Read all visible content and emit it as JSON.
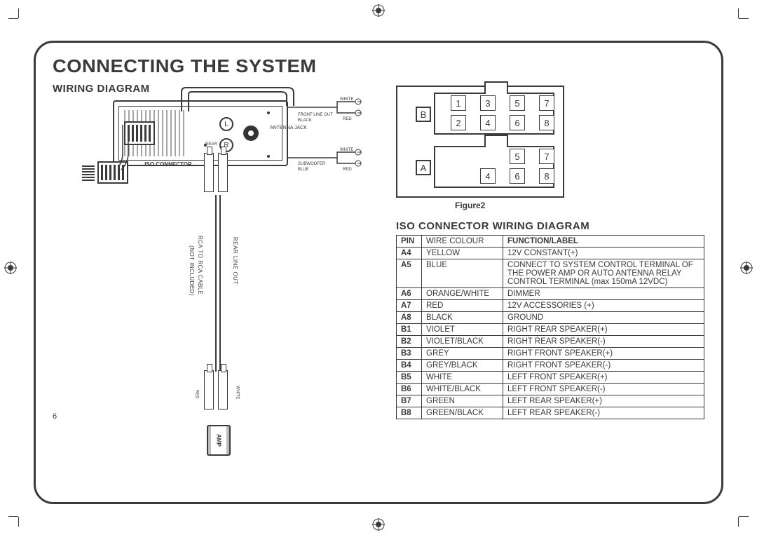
{
  "page_number": "6",
  "title": "CONNECTING THE SYSTEM",
  "section_wiring": "WIRING DIAGRAM",
  "iso_caption": "ISO CONNECTOR",
  "labels": {
    "antenna": "ANTENNA JACK",
    "rear": "REAR",
    "front_line": "FRONT LINE OUT",
    "black": "BLACK",
    "white": "WHITE",
    "red": "RED",
    "subwoofer": "SUBWOOFER",
    "blue": "BLUE",
    "rear_line_out": "REAR LINE OUT",
    "rca_cable": "RCA TO RCA CABLE",
    "not_included": "(NOT INCLUDED)",
    "amp": "AMP",
    "L": "L",
    "R": "R"
  },
  "figure2_caption": "Figure2",
  "connector_b": {
    "label": "B",
    "pins": [
      [
        "1",
        76,
        12
      ],
      [
        "3",
        118,
        12
      ],
      [
        "5",
        160,
        12
      ],
      [
        "7",
        202,
        12
      ],
      [
        "2",
        76,
        40
      ],
      [
        "4",
        118,
        40
      ],
      [
        "6",
        160,
        40
      ],
      [
        "8",
        202,
        40
      ]
    ]
  },
  "connector_a": {
    "label": "A",
    "pins": [
      [
        "5",
        160,
        88
      ],
      [
        "7",
        202,
        88
      ],
      [
        "4",
        118,
        116
      ],
      [
        "6",
        160,
        116
      ],
      [
        "8",
        202,
        116
      ]
    ]
  },
  "iso_section_title": "ISO CONNECTOR WIRING DIAGRAM",
  "table_headers": {
    "pin": "PIN",
    "colour": "WIRE COLOUR",
    "func": "FUNCTION/LABEL"
  },
  "table_rows": [
    {
      "pin": "A4",
      "colour": "YELLOW",
      "func": "12V CONSTANT(+)"
    },
    {
      "pin": "A5",
      "colour": "BLUE",
      "func": "CONNECT TO SYSTEM CONTROL TERMINAL OF THE POWER AMP OR AUTO ANTENNA RELAY CONTROL TERMINAL (max 150mA 12VDC)"
    },
    {
      "pin": "A6",
      "colour": "ORANGE/WHITE",
      "func": "DIMMER"
    },
    {
      "pin": "A7",
      "colour": "RED",
      "func": "12V ACCESSORIES (+)"
    },
    {
      "pin": "A8",
      "colour": "BLACK",
      "func": "GROUND"
    },
    {
      "pin": "B1",
      "colour": "VIOLET",
      "func": "RIGHT REAR SPEAKER(+)"
    },
    {
      "pin": "B2",
      "colour": "VIOLET/BLACK",
      "func": "RIGHT REAR SPEAKER(-)"
    },
    {
      "pin": "B3",
      "colour": "GREY",
      "func": "RIGHT FRONT SPEAKER(+)"
    },
    {
      "pin": "B4",
      "colour": "GREY/BLACK",
      "func": "RIGHT FRONT SPEAKER(-)"
    },
    {
      "pin": "B5",
      "colour": "WHITE",
      "func": "LEFT FRONT SPEAKER(+)"
    },
    {
      "pin": "B6",
      "colour": "WHITE/BLACK",
      "func": "LEFT FRONT SPEAKER(-)"
    },
    {
      "pin": "B7",
      "colour": "GREEN",
      "func": "LEFT REAR SPEAKER(+)"
    },
    {
      "pin": "B8",
      "colour": "GREEN/BLACK",
      "func": "LEFT REAR SPEAKER(-)"
    }
  ],
  "colors": {
    "ink": "#3a3a3a",
    "bg": "#ffffff"
  }
}
